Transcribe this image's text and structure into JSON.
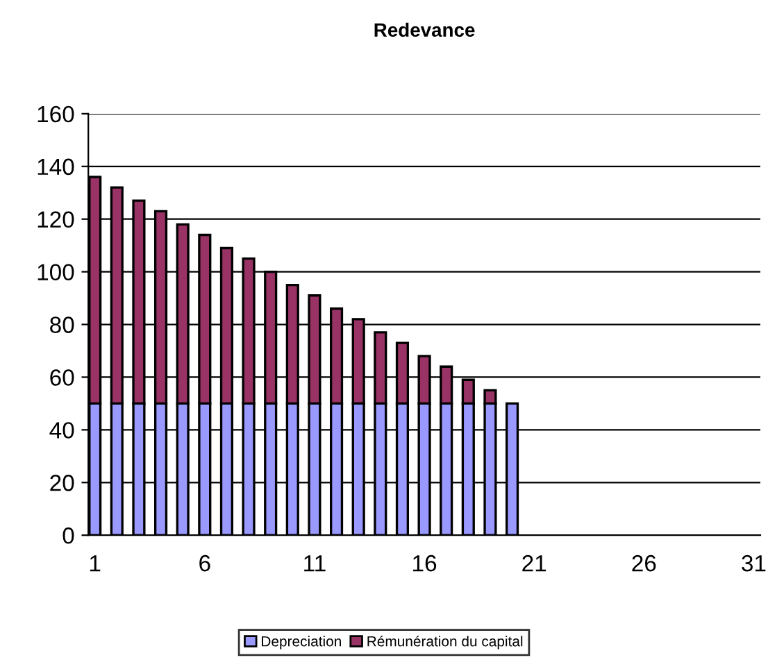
{
  "chart_data": {
    "type": "bar",
    "title": "Redevance",
    "stacked": true,
    "categories": [
      "1",
      null,
      null,
      null,
      null,
      "6",
      null,
      null,
      null,
      null,
      "11",
      null,
      null,
      null,
      null,
      "16",
      null,
      null,
      null,
      null,
      "21",
      null,
      null,
      null,
      null,
      "26",
      null,
      null,
      null,
      null,
      "31"
    ],
    "series": [
      {
        "name": "Depreciation",
        "color": "#9999ff",
        "values": [
          50,
          50,
          50,
          50,
          50,
          50,
          50,
          50,
          50,
          50,
          50,
          50,
          50,
          50,
          50,
          50,
          50,
          50,
          50,
          50,
          null,
          null,
          null,
          null,
          null,
          null,
          null,
          null,
          null,
          null,
          null
        ]
      },
      {
        "name": "Rémunération du capital",
        "color": "#993366",
        "values": [
          86,
          82,
          77,
          73,
          68,
          64,
          59,
          55,
          50,
          45,
          41,
          36,
          32,
          27,
          23,
          18,
          14,
          9,
          5,
          null,
          null,
          null,
          null,
          null,
          null,
          null,
          null,
          null,
          null,
          null,
          null
        ]
      }
    ],
    "ylim": [
      0,
      160
    ],
    "yticks": [
      0,
      20,
      40,
      60,
      80,
      100,
      120,
      140,
      160
    ],
    "grid": "y",
    "legend": "bottom"
  }
}
